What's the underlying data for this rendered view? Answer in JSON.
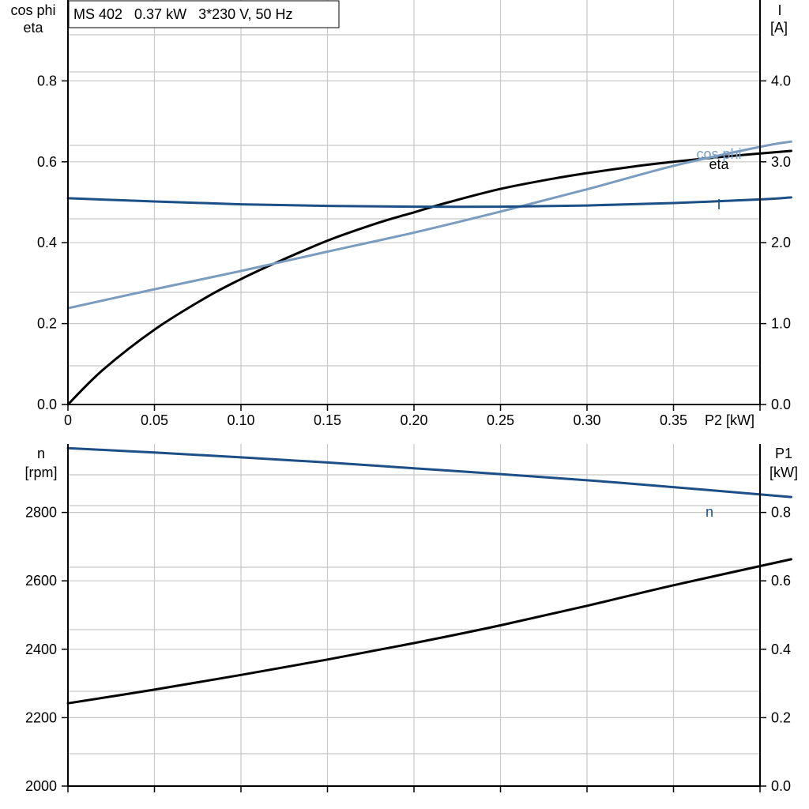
{
  "title": "MS 402   0.37 kW   3*230 V, 50 Hz",
  "colors": {
    "eta": "#000000",
    "cosphi": "#7a9cbf",
    "current": "#1b4f86",
    "speed": "#1b4f86",
    "p1": "#000000",
    "grid": "#c8c8c8"
  },
  "chart_data": [
    {
      "type": "line",
      "xlabel": "P2 [kW]",
      "y_left_label": [
        "cos phi",
        "eta"
      ],
      "y_right_label": [
        "I",
        "[A]"
      ],
      "xlim": [
        0,
        0.4
      ],
      "x_ticks": [
        0,
        0.05,
        0.1,
        0.15,
        0.2,
        0.25,
        0.3,
        0.35
      ],
      "x_tick_labels": [
        "0",
        "0.05",
        "0.10",
        "0.15",
        "0.20",
        "0.25",
        "0.30",
        "0.35"
      ],
      "ylim_left": [
        0,
        1.0
      ],
      "y_left_ticks": [
        0,
        0.2,
        0.4,
        0.6,
        0.8
      ],
      "y_left_tick_labels": [
        "0.0",
        "0.2",
        "0.4",
        "0.6",
        "0.8"
      ],
      "ylim_right": [
        0,
        5.0
      ],
      "y_right_ticks": [
        0,
        1,
        2,
        3,
        4
      ],
      "y_right_tick_labels": [
        "0.0",
        "1.0",
        "2.0",
        "3.0",
        "4.0"
      ],
      "grid": true,
      "series": [
        {
          "name": "eta",
          "axis": "left",
          "color_key": "eta",
          "x": [
            0,
            0.02,
            0.05,
            0.08,
            0.1,
            0.12,
            0.15,
            0.18,
            0.2,
            0.22,
            0.25,
            0.28,
            0.3,
            0.33,
            0.35,
            0.38,
            0.418
          ],
          "y": [
            0,
            0.085,
            0.185,
            0.265,
            0.31,
            0.35,
            0.405,
            0.45,
            0.475,
            0.5,
            0.533,
            0.558,
            0.572,
            0.59,
            0.6,
            0.613,
            0.627
          ]
        },
        {
          "name": "cos phi",
          "axis": "left",
          "color_key": "cosphi",
          "x": [
            0,
            0.05,
            0.1,
            0.15,
            0.2,
            0.25,
            0.3,
            0.35,
            0.4,
            0.418
          ],
          "y": [
            0.238,
            0.285,
            0.33,
            0.378,
            0.425,
            0.477,
            0.532,
            0.59,
            0.637,
            0.65
          ]
        },
        {
          "name": "I",
          "axis": "right",
          "color_key": "current",
          "x": [
            0,
            0.05,
            0.1,
            0.15,
            0.2,
            0.25,
            0.3,
            0.35,
            0.4,
            0.418
          ],
          "y": [
            2.55,
            2.51,
            2.475,
            2.455,
            2.445,
            2.445,
            2.46,
            2.49,
            2.535,
            2.56
          ]
        }
      ]
    },
    {
      "type": "line",
      "y_left_label": [
        "n",
        "[rpm]"
      ],
      "y_right_label": [
        "P1",
        "[kW]"
      ],
      "xlim": [
        0,
        0.4
      ],
      "x_ticks": [
        0,
        0.05,
        0.1,
        0.15,
        0.2,
        0.25,
        0.3,
        0.35
      ],
      "ylim_left": [
        2000,
        3000
      ],
      "y_left_ticks": [
        2000,
        2200,
        2400,
        2600,
        2800
      ],
      "y_left_tick_labels": [
        "2000",
        "2200",
        "2400",
        "2600",
        "2800"
      ],
      "ylim_right": [
        0,
        1.0
      ],
      "y_right_ticks": [
        0,
        0.2,
        0.4,
        0.6,
        0.8
      ],
      "y_right_tick_labels": [
        "0.0",
        "0.2",
        "0.4",
        "0.6",
        "0.8"
      ],
      "grid": true,
      "series": [
        {
          "name": "n",
          "axis": "left",
          "color_key": "speed",
          "x": [
            0,
            0.05,
            0.1,
            0.15,
            0.2,
            0.25,
            0.3,
            0.35,
            0.418
          ],
          "y": [
            2988,
            2975,
            2961,
            2946,
            2929,
            2912,
            2894,
            2874,
            2845
          ]
        },
        {
          "name": "",
          "axis": "right",
          "color_key": "p1",
          "x": [
            0,
            0.05,
            0.1,
            0.15,
            0.2,
            0.25,
            0.3,
            0.35,
            0.418
          ],
          "y": [
            0.242,
            0.282,
            0.325,
            0.37,
            0.418,
            0.47,
            0.527,
            0.587,
            0.663
          ]
        }
      ]
    }
  ]
}
